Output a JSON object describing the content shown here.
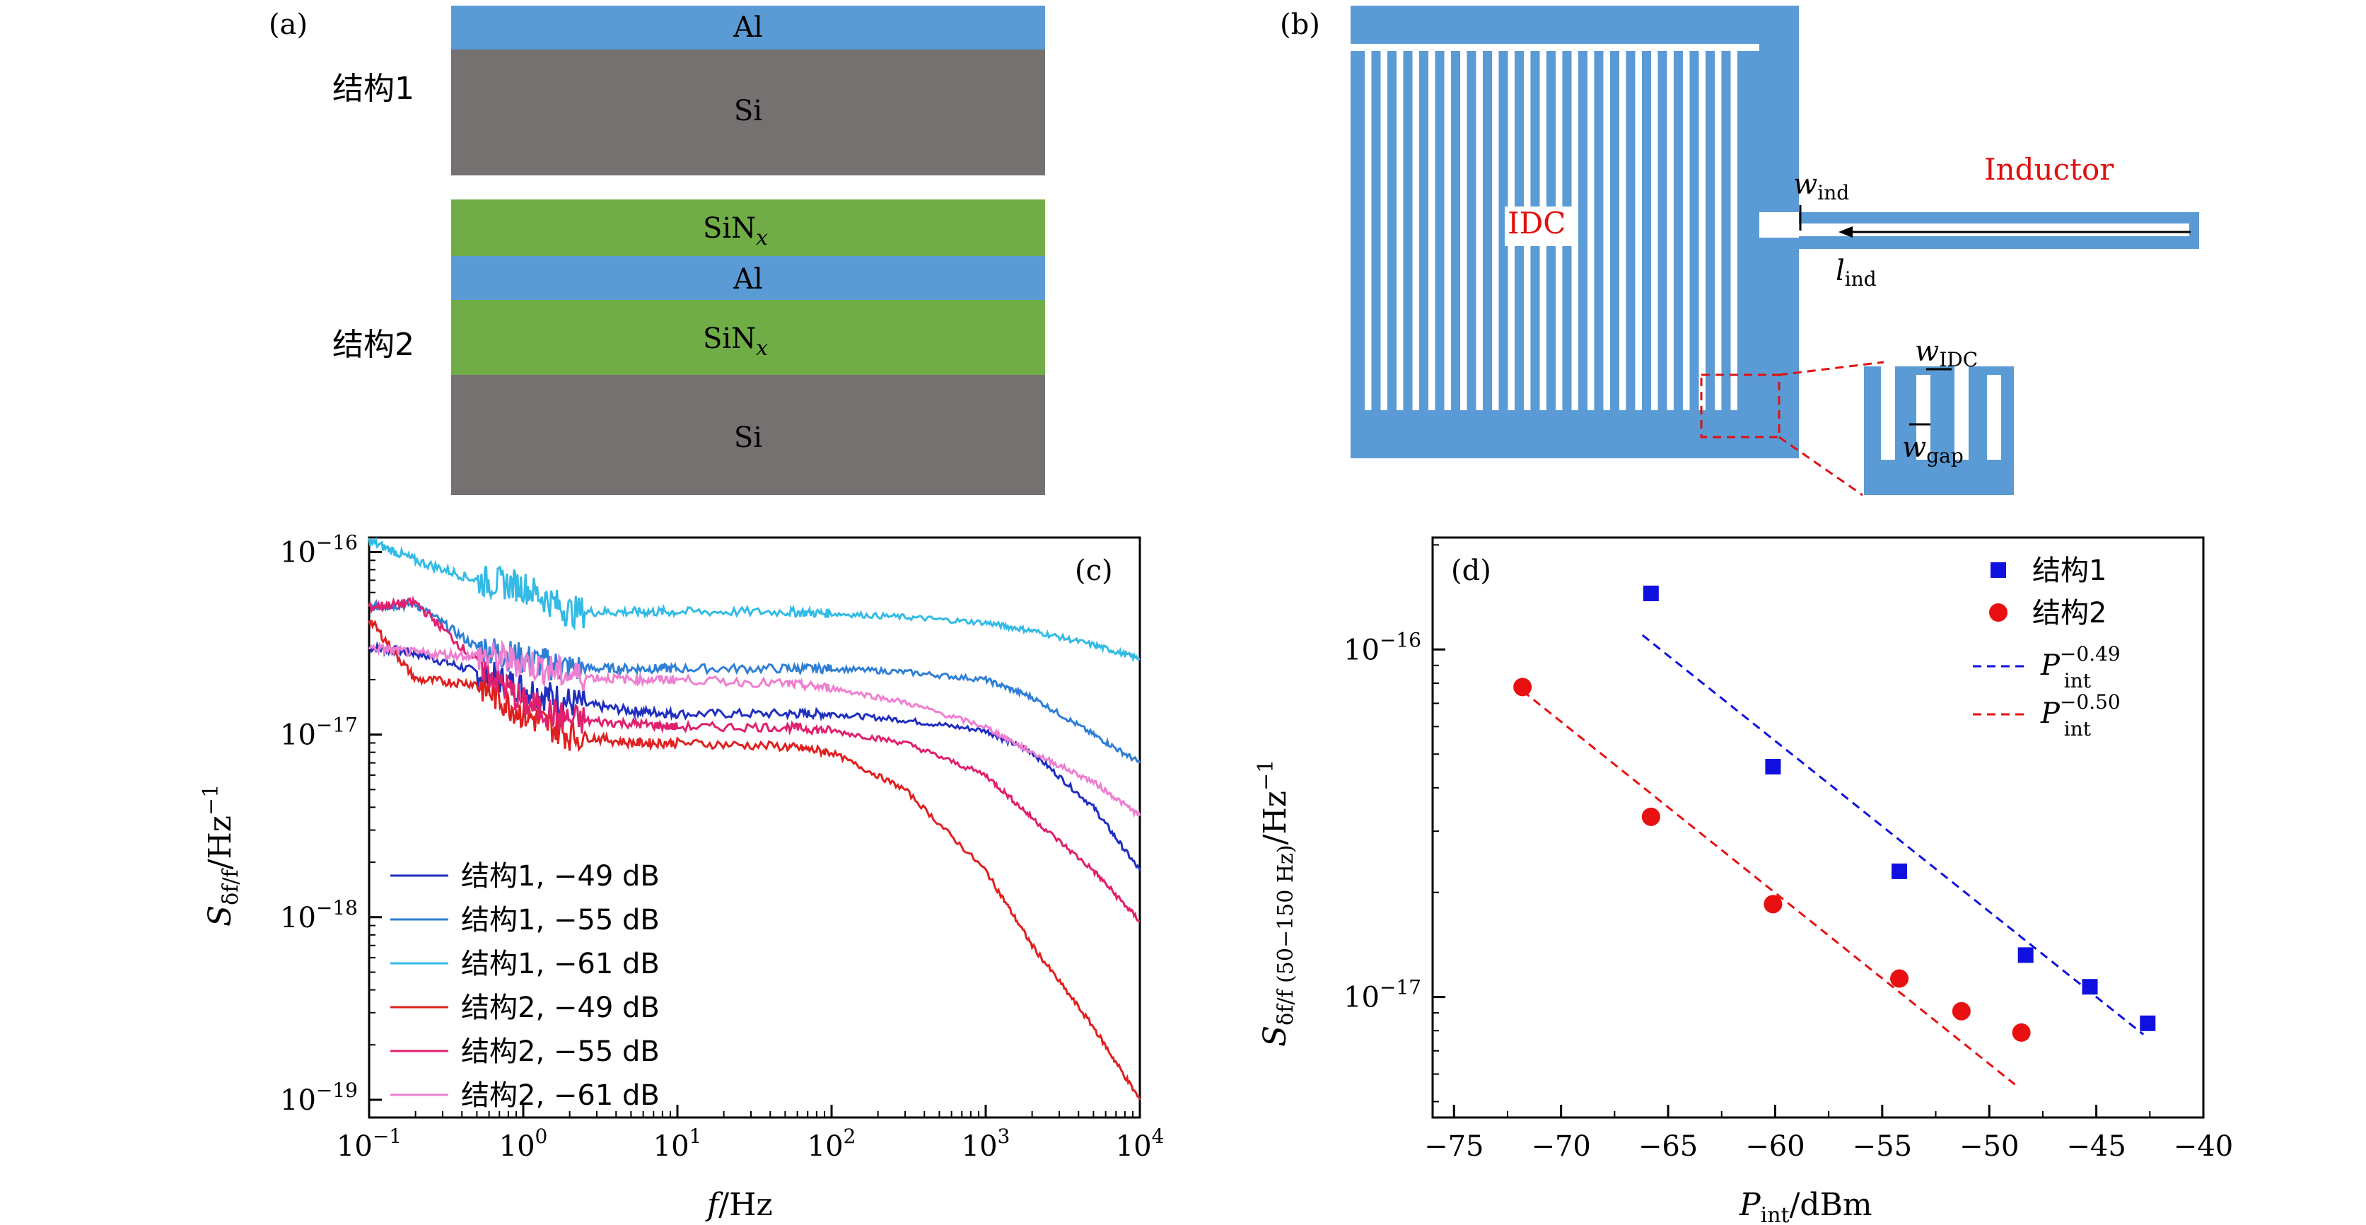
{
  "panel_a": {
    "label": "(a)",
    "structure1_label": "结构1",
    "structure2_label": "结构2",
    "layers1": [
      "Al",
      "Si"
    ],
    "layers2": [
      "SiN",
      "Al",
      "SiN",
      "Si"
    ],
    "sub_x": "x",
    "colors": {
      "Al": "#5b9bd5",
      "Si": "#767171",
      "SiN": "#70ad47"
    }
  },
  "panel_b": {
    "label": "(b)",
    "idc": "IDC",
    "inductor": "Inductor",
    "w": "w",
    "l": "l",
    "ind_sub": "ind",
    "idc_sub": "IDC",
    "gap_sub": "gap",
    "color_metal": "#5b9bd5"
  },
  "chart_data": [
    {
      "type": "line",
      "panel": "(c)",
      "xlabel_main": "f",
      "xlabel_unit": "/Hz",
      "ylabel_S": "S",
      "ylabel_sub": "δf/f",
      "ylabel_unit": "/Hz",
      "ylabel_exp": "−1",
      "x_scale": "log",
      "y_scale": "log",
      "xlim": [
        0.1,
        10000
      ],
      "ylim": [
        8e-20,
        1.2e-16
      ],
      "x_ticks": [
        {
          "base": "10",
          "exp": "−1",
          "v": 0.1
        },
        {
          "base": "10",
          "exp": "0",
          "v": 1
        },
        {
          "base": "10",
          "exp": "1",
          "v": 10
        },
        {
          "base": "10",
          "exp": "2",
          "v": 100
        },
        {
          "base": "10",
          "exp": "3",
          "v": 1000
        },
        {
          "base": "10",
          "exp": "4",
          "v": 10000
        }
      ],
      "y_ticks": [
        {
          "base": "10",
          "exp": "−16",
          "v": 1e-16
        },
        {
          "base": "10",
          "exp": "−17",
          "v": 1e-17
        },
        {
          "base": "10",
          "exp": "−18",
          "v": 1e-18
        },
        {
          "base": "10",
          "exp": "−19",
          "v": 1e-19
        }
      ],
      "legend_position": "bottom-left",
      "series": [
        {
          "name": "结构1, −49 dB",
          "color": "#1f2fbf",
          "x": [
            0.1,
            0.2,
            0.5,
            1,
            2,
            5,
            10,
            50,
            100,
            300,
            1000,
            2000,
            5000,
            10000
          ],
          "values": [
            3e-17,
            2.8e-17,
            2.2e-17,
            1.8e-17,
            1.5e-17,
            1.35e-17,
            1.3e-17,
            1.3e-17,
            1.3e-17,
            1.2e-17,
            1.05e-17,
            8e-18,
            4e-18,
            1.8e-18
          ]
        },
        {
          "name": "结构1, −55 dB",
          "color": "#2f7fd6",
          "x": [
            0.1,
            0.2,
            0.5,
            1,
            2,
            5,
            10,
            50,
            100,
            300,
            1000,
            2000,
            5000,
            10000
          ],
          "values": [
            5e-17,
            5.2e-17,
            3e-17,
            2.6e-17,
            2.3e-17,
            2.3e-17,
            2.3e-17,
            2.3e-17,
            2.3e-17,
            2.2e-17,
            2e-17,
            1.6e-17,
            1e-17,
            7e-18
          ]
        },
        {
          "name": "结构1, −61 dB",
          "color": "#33bbe6",
          "x": [
            0.1,
            0.2,
            0.5,
            1,
            2,
            5,
            10,
            50,
            100,
            300,
            1000,
            2000,
            5000,
            10000
          ],
          "values": [
            1.15e-16,
            9e-17,
            7e-17,
            6.5e-17,
            4.7e-17,
            4.7e-17,
            4.7e-17,
            4.7e-17,
            4.6e-17,
            4.4e-17,
            4.1e-17,
            3.7e-17,
            3.1e-17,
            2.6e-17
          ]
        },
        {
          "name": "结构2, −49 dB",
          "color": "#e02020",
          "x": [
            0.1,
            0.2,
            0.5,
            1,
            2,
            5,
            10,
            50,
            100,
            300,
            1000,
            2000,
            5000,
            10000
          ],
          "values": [
            4.3e-17,
            2e-17,
            1.9e-17,
            1.3e-17,
            1e-17,
            9e-18,
            9e-18,
            8.6e-18,
            8e-18,
            5e-18,
            1.8e-18,
            7e-19,
            2.5e-19,
            1e-19
          ]
        },
        {
          "name": "结构2, −55 dB",
          "color": "#e0206e",
          "x": [
            0.1,
            0.2,
            0.5,
            1,
            2,
            5,
            10,
            50,
            100,
            300,
            1000,
            2000,
            5000,
            10000
          ],
          "values": [
            5e-17,
            5.3e-17,
            2.5e-17,
            1.5e-17,
            1.2e-17,
            1.15e-17,
            1.1e-17,
            1.1e-17,
            1.05e-17,
            9e-18,
            6e-18,
            3.5e-18,
            1.8e-18,
            9.5e-19
          ]
        },
        {
          "name": "结构2, −61 dB",
          "color": "#ef7fd1",
          "x": [
            0.1,
            0.2,
            0.5,
            1,
            2,
            5,
            10,
            50,
            100,
            300,
            1000,
            2000,
            5000,
            10000
          ],
          "values": [
            3e-17,
            2.8e-17,
            2.7e-17,
            2.5e-17,
            2.1e-17,
            2e-17,
            2e-17,
            1.9e-17,
            1.8e-17,
            1.5e-17,
            1.1e-17,
            8e-18,
            5.5e-18,
            3.6e-18
          ]
        }
      ]
    },
    {
      "type": "scatter",
      "panel": "(d)",
      "xlabel_P": "P",
      "xlabel_sub": "int",
      "xlabel_unit": "/dBm",
      "ylabel_S": "S",
      "ylabel_sub": "δf/f (50−150 Hz)",
      "ylabel_unit": "/Hz",
      "ylabel_exp": "−1",
      "x_scale": "linear",
      "y_scale": "log",
      "xlim": [
        -76,
        -40
      ],
      "ylim": [
        4.5e-18,
        2.1e-16
      ],
      "x_ticks": [
        "−75",
        "−70",
        "−65",
        "−60",
        "−55",
        "−50",
        "−45",
        "−40"
      ],
      "x_tick_values": [
        -75,
        -70,
        -65,
        -60,
        -55,
        -50,
        -45,
        -40
      ],
      "y_ticks": [
        {
          "base": "10",
          "exp": "−16",
          "v": 1e-16
        },
        {
          "base": "10",
          "exp": "−17",
          "v": 1e-17
        }
      ],
      "legend_position": "top-right",
      "series": [
        {
          "name": "结构1",
          "marker": "square",
          "color": "#1010e0",
          "x": [
            -65.8,
            -60.1,
            -54.2,
            -48.3,
            -45.3,
            -42.6
          ],
          "values": [
            1.45e-16,
            4.6e-17,
            2.3e-17,
            1.32e-17,
            1.07e-17,
            8.4e-18
          ]
        },
        {
          "name": "结构2",
          "marker": "circle",
          "color": "#e81010",
          "x": [
            -71.8,
            -65.8,
            -60.1,
            -54.2,
            -51.3,
            -48.5
          ],
          "values": [
            7.8e-17,
            3.3e-17,
            1.85e-17,
            1.13e-17,
            9.1e-18,
            7.9e-18
          ]
        }
      ],
      "fits": [
        {
          "name_base": "P",
          "name_sub": "int",
          "name_exp": "−0.49",
          "color": "#1010e0",
          "style": "dashed",
          "x": [
            -66.2,
            -42.8
          ],
          "values": [
            1.1e-16,
            7.8e-18
          ]
        },
        {
          "name_base": "P",
          "name_sub": "int",
          "name_exp": "−0.50",
          "color": "#e81010",
          "style": "dashed",
          "x": [
            -71.8,
            -48.8
          ],
          "values": [
            7.6e-17,
            5.6e-18
          ]
        }
      ]
    }
  ]
}
